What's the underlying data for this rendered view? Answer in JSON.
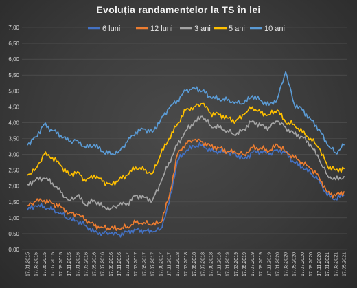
{
  "chart_data": {
    "type": "line",
    "title": "Evoluția  randamentelor  la TS în lei",
    "xlabel": "",
    "ylabel": "",
    "ylim": [
      0,
      7
    ],
    "yticks": [
      "0,00",
      "0,50",
      "1,00",
      "1,50",
      "2,00",
      "2,50",
      "3,00",
      "3,50",
      "4,00",
      "4,50",
      "5,00",
      "5,50",
      "6,00",
      "6,50",
      "7,00"
    ],
    "grid": true,
    "legend_position": "top",
    "x": [
      "17.01.2015",
      "17.03.2015",
      "17.05.2015",
      "17.07.2015",
      "17.09.2015",
      "17.11.2015",
      "17.01.2016",
      "17.03.2016",
      "17.05.2016",
      "17.07.2016",
      "17.09.2016",
      "17.11.2016",
      "17.01.2017",
      "17.03.2017",
      "17.05.2017",
      "17.07.2017",
      "17.09.2017",
      "17.11.2017",
      "17.01.2018",
      "17.03.2018",
      "17.05.2018",
      "17.07.2018",
      "17.09.2018",
      "17.11.2018",
      "17.01.2019",
      "17.03.2019",
      "17.05.2019",
      "17.07.2019",
      "17.09.2019",
      "17.11.2019",
      "17.01.2020",
      "17.03.2020",
      "17.05.2020",
      "17.07.2020",
      "17.09.2020",
      "17.11.2020",
      "17.01.2021",
      "17.03.2021",
      "17.05.2021"
    ],
    "series": [
      {
        "name": "6 luni",
        "color": "#4472c4",
        "values": [
          1.25,
          1.38,
          1.35,
          1.25,
          1.15,
          0.95,
          0.9,
          0.75,
          0.55,
          0.52,
          0.5,
          0.48,
          0.55,
          0.62,
          0.6,
          0.55,
          0.65,
          1.45,
          2.8,
          3.1,
          3.25,
          3.3,
          3.1,
          3.1,
          3.05,
          3.0,
          2.85,
          3.05,
          3.1,
          3.0,
          3.15,
          3.05,
          2.75,
          2.6,
          2.4,
          2.2,
          1.7,
          1.6,
          1.72
        ]
      },
      {
        "name": "12 luni",
        "color": "#ed7d31",
        "values": [
          1.38,
          1.52,
          1.55,
          1.45,
          1.35,
          1.15,
          1.1,
          0.95,
          0.75,
          0.7,
          0.68,
          0.65,
          0.72,
          0.85,
          0.85,
          0.78,
          0.85,
          1.65,
          3.0,
          3.35,
          3.45,
          3.4,
          3.25,
          3.2,
          3.1,
          3.05,
          3.0,
          3.2,
          3.2,
          3.1,
          3.3,
          3.1,
          2.9,
          2.75,
          2.55,
          2.3,
          1.8,
          1.7,
          1.82
        ]
      },
      {
        "name": "3 ani",
        "color": "#a5a5a5",
        "values": [
          2.05,
          2.2,
          2.25,
          2.1,
          1.8,
          1.55,
          1.7,
          1.4,
          1.55,
          1.35,
          1.3,
          1.4,
          1.45,
          1.7,
          1.65,
          1.55,
          2.1,
          2.75,
          3.3,
          3.75,
          4.0,
          4.2,
          3.9,
          3.85,
          3.75,
          3.6,
          3.8,
          4.05,
          3.9,
          3.85,
          4.05,
          3.85,
          3.65,
          3.55,
          3.3,
          2.85,
          2.35,
          2.2,
          2.3
        ]
      },
      {
        "name": "5 ani",
        "color": "#ffc000",
        "values": [
          2.35,
          2.55,
          3.0,
          2.9,
          2.65,
          2.35,
          2.45,
          2.15,
          2.35,
          2.15,
          2.05,
          2.2,
          2.35,
          2.6,
          2.5,
          2.4,
          3.0,
          3.5,
          3.95,
          4.4,
          4.5,
          4.6,
          4.3,
          4.25,
          4.15,
          4.05,
          4.25,
          4.5,
          4.3,
          4.25,
          4.4,
          4.0,
          3.95,
          3.7,
          3.5,
          3.2,
          2.65,
          2.5,
          2.55
        ]
      },
      {
        "name": "10 ani",
        "color": "#5b9bd5",
        "values": [
          3.3,
          3.55,
          3.95,
          3.75,
          3.6,
          3.4,
          3.45,
          3.2,
          3.3,
          3.1,
          3.0,
          3.1,
          3.4,
          3.7,
          3.8,
          3.7,
          4.1,
          4.45,
          4.7,
          5.0,
          5.1,
          5.0,
          4.8,
          4.75,
          4.7,
          4.65,
          4.6,
          4.85,
          4.7,
          4.55,
          4.75,
          5.6,
          4.6,
          4.4,
          4.1,
          3.8,
          3.3,
          3.05,
          3.3
        ]
      }
    ]
  }
}
